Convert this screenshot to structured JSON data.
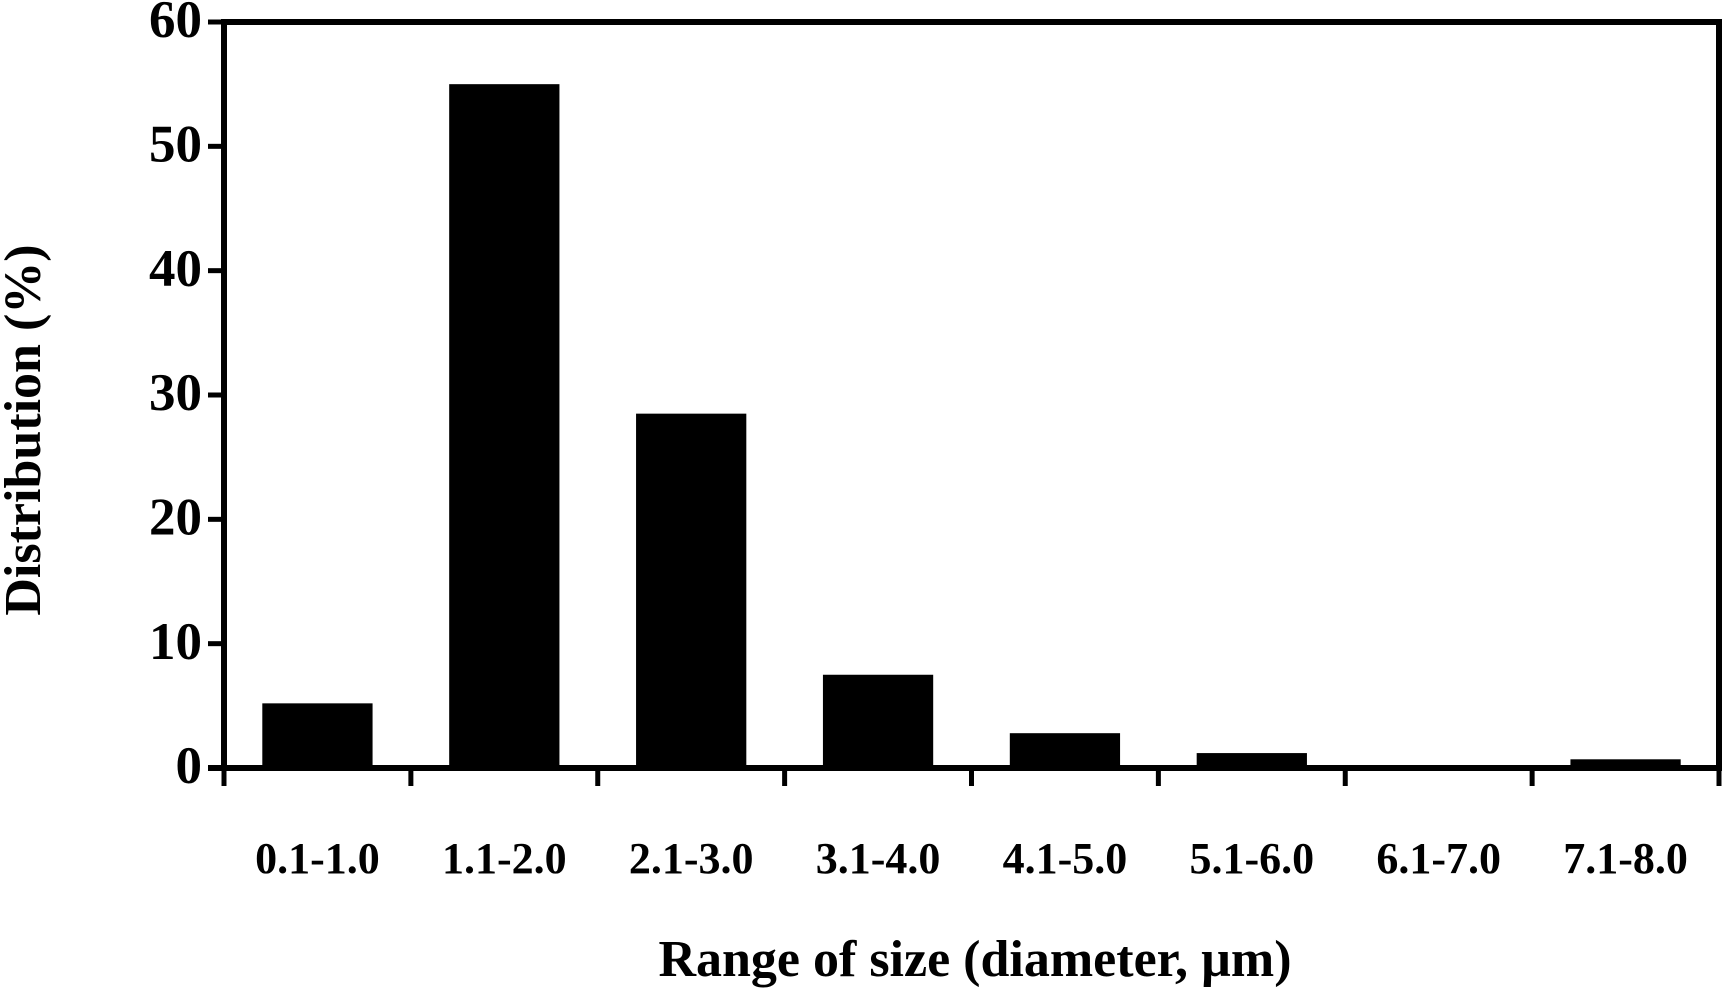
{
  "chart_data": {
    "type": "bar",
    "x_label": "Range of size (diameter, µm)",
    "y_label": "Distribution (%)",
    "categories": [
      "0.1-1.0",
      "1.1-2.0",
      "2.1-3.0",
      "3.1-4.0",
      "4.1-5.0",
      "5.1-6.0",
      "6.1-7.0",
      "7.1-8.0"
    ],
    "values": [
      5.2,
      55,
      28.5,
      7.5,
      2.8,
      1.2,
      0,
      0.7
    ],
    "color": "#000000",
    "ylim": [
      0,
      60
    ],
    "yticks": [
      0,
      10,
      20,
      30,
      40,
      50,
      60
    ],
    "grid": false
  }
}
